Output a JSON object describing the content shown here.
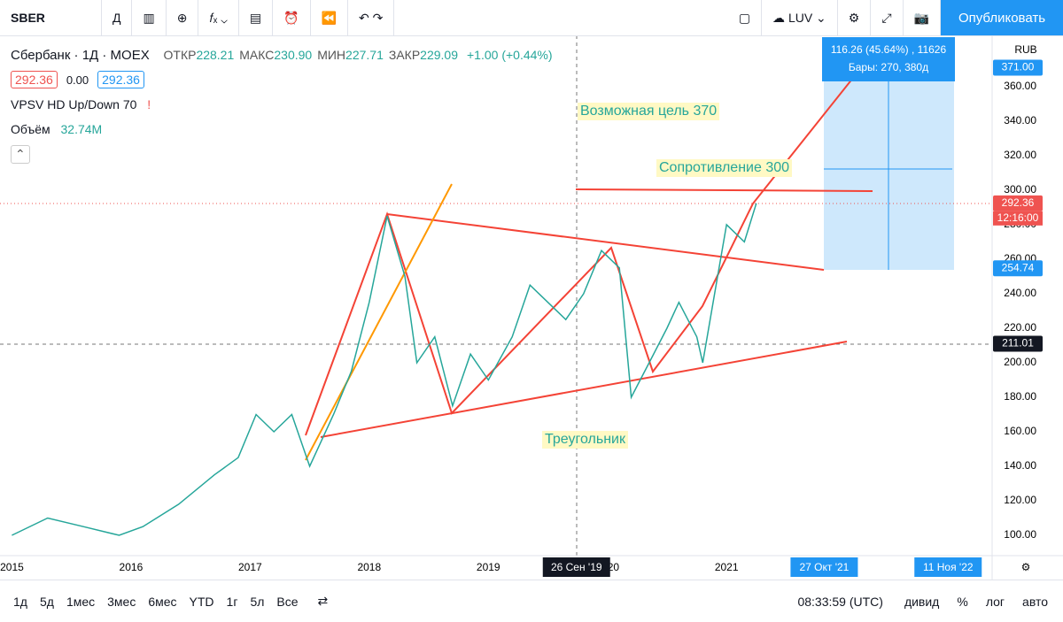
{
  "toolbar": {
    "symbol": "SBER",
    "interval": "Д",
    "layout_name": "LUV",
    "publish": "Опубликовать"
  },
  "legend": {
    "title": "Сбербанк · 1Д · MOEX",
    "ohlc": [
      {
        "label": "ОТКР",
        "value": "228.21"
      },
      {
        "label": "МАКС",
        "value": "230.90"
      },
      {
        "label": "МИН",
        "value": "227.71"
      },
      {
        "label": "ЗАКР",
        "value": "229.09"
      }
    ],
    "change": "+1.00 (+0.44%)",
    "bid": "292.36",
    "spread": "0.00",
    "ask": "292.36",
    "indicator": "VPSV HD Up/Down 70",
    "volume_label": "Объём",
    "volume_value": "32.74M"
  },
  "measure": {
    "line1": "116.26 (45.64%) , 11626",
    "line2": "Бары: 270, 380д"
  },
  "currency": "RUB",
  "annotations": [
    "Возможная цель 370",
    "Сопротивление 300",
    "Треугольник"
  ],
  "chart_data": {
    "type": "line",
    "color": "#26a69a",
    "x": [
      2015.0,
      2015.3,
      2015.6,
      2015.9,
      2016.1,
      2016.4,
      2016.7,
      2016.9,
      2017.05,
      2017.2,
      2017.35,
      2017.5,
      2017.7,
      2017.85,
      2018.0,
      2018.15,
      2018.3,
      2018.4,
      2018.55,
      2018.7,
      2018.85,
      2019.0,
      2019.2,
      2019.35,
      2019.5,
      2019.65,
      2019.8,
      2019.95,
      2020.1,
      2020.2,
      2020.35,
      2020.5,
      2020.6,
      2020.75,
      2020.8,
      2020.9,
      2021.0,
      2021.15,
      2021.25
    ],
    "values": [
      100,
      110,
      105,
      100,
      105,
      118,
      135,
      145,
      170,
      160,
      170,
      140,
      170,
      195,
      235,
      285,
      250,
      200,
      215,
      175,
      205,
      190,
      215,
      245,
      235,
      225,
      240,
      265,
      255,
      180,
      200,
      220,
      235,
      215,
      200,
      240,
      280,
      270,
      292.36
    ],
    "xlim": [
      2014.9,
      2023.23
    ],
    "ylim": [
      88.2,
      389.7
    ],
    "grid": false,
    "xticks": [
      2015,
      2016,
      2017,
      2018,
      2019,
      2020,
      2021
    ],
    "yticks": [
      {
        "value": 100,
        "label": "100.00"
      },
      {
        "value": 120,
        "label": "120.00"
      },
      {
        "value": 140,
        "label": "140.00"
      },
      {
        "value": 160,
        "label": "160.00"
      },
      {
        "value": 180,
        "label": "180.00"
      },
      {
        "value": 200,
        "label": "200.00"
      },
      {
        "value": 220,
        "label": "220.00"
      },
      {
        "value": 240,
        "label": "240.00"
      },
      {
        "value": 260,
        "label": "260.00"
      },
      {
        "value": 280,
        "label": "280.00"
      },
      {
        "value": 300,
        "label": "300.00"
      },
      {
        "value": 320,
        "label": "320.00"
      },
      {
        "value": 340,
        "label": "340.00"
      },
      {
        "value": 360,
        "label": "360.00"
      }
    ],
    "price_markers": [
      {
        "value": 371,
        "label": "371.00",
        "color": "#2196f3"
      },
      {
        "value": 292.36,
        "label": "292.36",
        "color": "#ef5350"
      },
      {
        "value": 254.74,
        "label": "254.74",
        "color": "#2196f3"
      },
      {
        "value": 211.01,
        "label": "211.01",
        "color": "#131722"
      }
    ],
    "countdown": "12:16:00",
    "time_markers": [
      {
        "value": 2019.74,
        "label": "26 Сен '19",
        "color": "#131722"
      },
      {
        "value": 2021.82,
        "label": "27 Окт '21",
        "color": "#2196f3"
      },
      {
        "value": 2022.86,
        "label": "11 Ноя '22",
        "color": "#2196f3"
      }
    ]
  },
  "ranges": [
    "1д",
    "5д",
    "1мес",
    "3мес",
    "6мес",
    "YTD",
    "1г",
    "5л",
    "Все"
  ],
  "clock": "08:33:59 (UTC)",
  "scale_options": [
    "дивид",
    "%",
    "лог",
    "авто"
  ]
}
